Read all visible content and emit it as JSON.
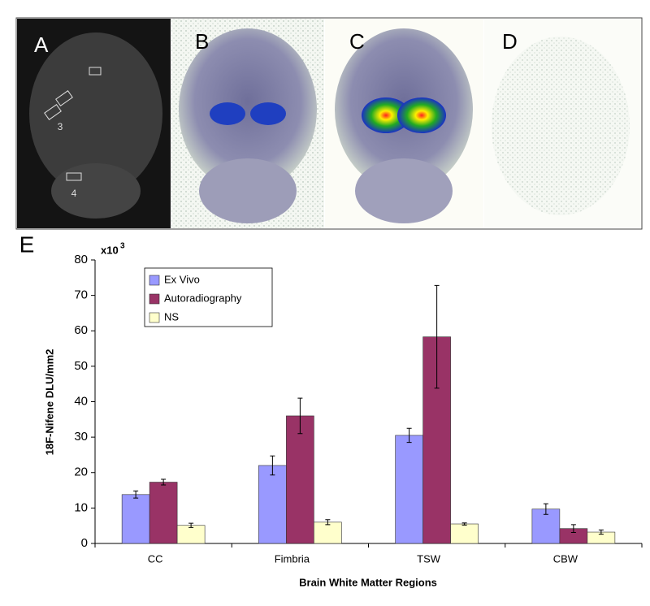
{
  "panel_labels": [
    "A",
    "B",
    "C",
    "D",
    "E"
  ],
  "region_markers": [
    "3",
    "4"
  ],
  "chart_data": {
    "type": "bar",
    "axis_multiplier": {
      "base": "x10",
      "exponent": "3"
    },
    "y_label": "18F-Nifene DLU/mm2",
    "x_label": "Brain White Matter Regions",
    "categories": [
      "CC",
      "Fimbria",
      "TSW",
      "CBW"
    ],
    "series": [
      {
        "name": "Ex Vivo",
        "color": "#9999ff",
        "values": [
          13.8,
          22,
          30.5,
          9.7
        ],
        "errors": [
          1,
          2.7,
          2,
          1.5
        ]
      },
      {
        "name": "Autoradiography",
        "color": "#993366",
        "values": [
          17.3,
          36,
          58.3,
          4.2
        ],
        "errors": [
          0.8,
          5,
          14.5,
          1.1
        ]
      },
      {
        "name": "NS",
        "color": "#ffffcc",
        "values": [
          5.1,
          6,
          5.5,
          3.2
        ],
        "errors": [
          0.6,
          0.7,
          0.3,
          0.6
        ]
      }
    ],
    "ylim": [
      0,
      80
    ],
    "yticks": [
      0,
      10,
      20,
      30,
      40,
      50,
      60,
      70,
      80
    ],
    "legend": "upper-left",
    "grid": false
  }
}
